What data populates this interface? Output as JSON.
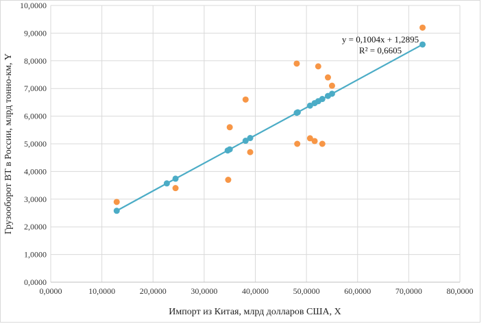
{
  "chart_data": {
    "type": "scatter",
    "title": "",
    "xlabel": "Импорт из Китая, млрд долларов США, X",
    "ylabel": "Грузооборот ВТ в России, млрд тонно-км, Y",
    "xlim": [
      0,
      80
    ],
    "ylim": [
      0,
      10
    ],
    "x_ticks": [
      "0,0000",
      "10,0000",
      "20,0000",
      "30,0000",
      "40,0000",
      "50,0000",
      "60,0000",
      "70,0000",
      "80,0000"
    ],
    "y_ticks": [
      "0,0000",
      "1,0000",
      "2,0000",
      "3,0000",
      "4,0000",
      "5,0000",
      "6,0000",
      "7,0000",
      "8,0000",
      "9,0000",
      "10,0000"
    ],
    "grid": true,
    "legend": "none",
    "series": [
      {
        "color": "#f79646",
        "marker": "circle",
        "points": [
          [
            12.9,
            2.9
          ],
          [
            24.4,
            3.4
          ],
          [
            34.7,
            3.7
          ],
          [
            35.0,
            5.6
          ],
          [
            38.1,
            6.6
          ],
          [
            39.0,
            4.7
          ],
          [
            48.1,
            7.9
          ],
          [
            48.2,
            5.0
          ],
          [
            50.7,
            5.2
          ],
          [
            51.6,
            5.1
          ],
          [
            52.3,
            7.8
          ],
          [
            53.1,
            5.0
          ],
          [
            54.2,
            7.4
          ],
          [
            55.0,
            7.1
          ],
          [
            72.7,
            9.2
          ]
        ]
      },
      {
        "color": "#4bacc6",
        "marker": "circle",
        "line": true,
        "points": [
          [
            12.9,
            2.58
          ],
          [
            22.7,
            3.57
          ],
          [
            24.4,
            3.74
          ],
          [
            34.6,
            4.76
          ],
          [
            35.0,
            4.8
          ],
          [
            38.1,
            5.11
          ],
          [
            39.0,
            5.21
          ],
          [
            48.1,
            6.12
          ],
          [
            48.3,
            6.14
          ],
          [
            50.7,
            6.38
          ],
          [
            51.6,
            6.47
          ],
          [
            52.3,
            6.54
          ],
          [
            53.1,
            6.62
          ],
          [
            54.2,
            6.73
          ],
          [
            55.0,
            6.81
          ],
          [
            72.7,
            8.59
          ]
        ]
      }
    ],
    "annotations": {
      "equation": "y = 0,1004x + 1,2895",
      "r_squared": "R² = 0,6605"
    }
  }
}
